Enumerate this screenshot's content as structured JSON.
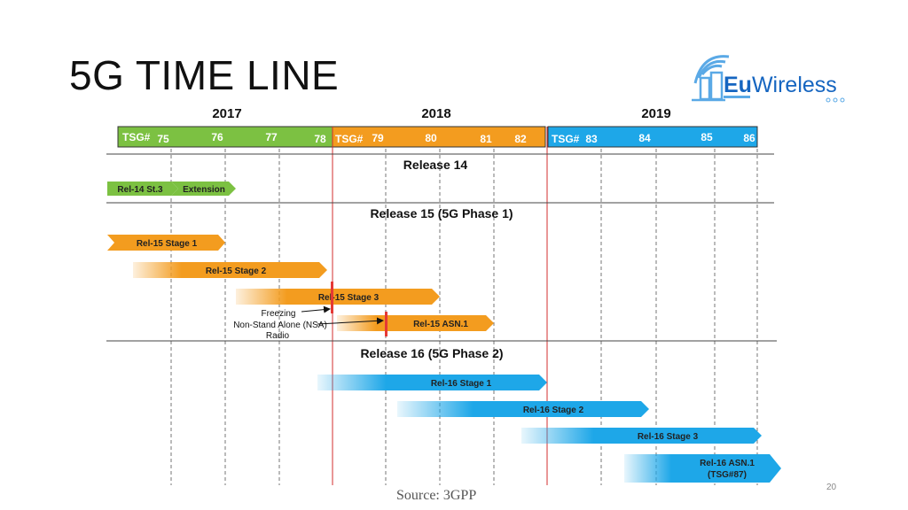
{
  "slide": {
    "title": "5G TIME LINE",
    "logo_prefix": "Eu",
    "logo_suffix": "Wireless",
    "source": "Source: 3GPP",
    "page_number": "20"
  },
  "years": [
    "2017",
    "2018",
    "2019"
  ],
  "tsg_prefix": "TSG#",
  "tsg_numbers": [
    "75",
    "76",
    "77",
    "78",
    "79",
    "80",
    "81",
    "82",
    "83",
    "84",
    "85",
    "86"
  ],
  "sections": [
    "Release 14",
    "Release 15 (5G Phase 1)",
    "Release 16 (5G Phase 2)"
  ],
  "bars": [
    {
      "label": "Rel-14 St.3",
      "color": "#7cc142"
    },
    {
      "label": "Extension",
      "color": "#7cc142"
    },
    {
      "label": "Rel-15 Stage 1",
      "color": "#f39c1f"
    },
    {
      "label": "Rel-15 Stage 2",
      "color": "#f39c1f"
    },
    {
      "label": "Rel-15 Stage 3",
      "color": "#f39c1f"
    },
    {
      "label": "Rel-15 ASN.1",
      "color": "#f39c1f"
    },
    {
      "label": "Rel-16 Stage 1",
      "color": "#1ea7e8"
    },
    {
      "label": "Rel-16 Stage 2",
      "color": "#1ea7e8"
    },
    {
      "label": "Rel-16 Stage 3",
      "color": "#1ea7e8"
    },
    {
      "label": "Rel-16 ASN.1",
      "label2": "(TSG#87)",
      "color": "#1ea7e8"
    }
  ],
  "annotation": {
    "line1": "Freezing",
    "line2": "Non-Stand Alone (NSA)",
    "line3": "Radio"
  },
  "colors": {
    "green": "#7cc142",
    "orange": "#f39c1f",
    "blue": "#1ea7e8",
    "freeze_marker": "#e53935",
    "year_divider": "#d32f2f"
  },
  "icons": [
    "building-wifi-logo-icon"
  ]
}
